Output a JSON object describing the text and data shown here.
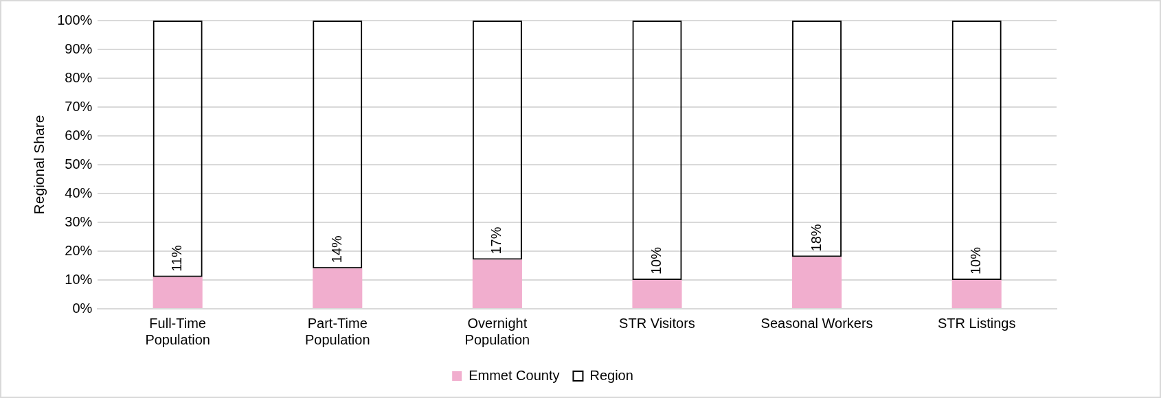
{
  "chart_data": {
    "type": "bar",
    "stacked": true,
    "ylabel": "Regional Share",
    "categories": [
      "Full-Time Population",
      "Part-Time Population",
      "Overnight Population",
      "STR Visitors",
      "Seasonal Workers",
      "STR Listings"
    ],
    "series": [
      {
        "name": "Emmet County",
        "color": "#f1aece",
        "values": [
          11,
          14,
          17,
          10,
          18,
          10
        ],
        "value_labels": [
          "11%",
          "14%",
          "17%",
          "10%",
          "18%",
          "10%"
        ]
      },
      {
        "name": "Region",
        "color": "#000000",
        "values": [
          89,
          86,
          83,
          90,
          82,
          90
        ]
      }
    ],
    "ylim": [
      0,
      100
    ],
    "yticks": [
      {
        "value": 0,
        "label": "0%"
      },
      {
        "value": 10,
        "label": "10%"
      },
      {
        "value": 20,
        "label": "20%"
      },
      {
        "value": 30,
        "label": "30%"
      },
      {
        "value": 40,
        "label": "40%"
      },
      {
        "value": 50,
        "label": "50%"
      },
      {
        "value": 60,
        "label": "60%"
      },
      {
        "value": 70,
        "label": "70%"
      },
      {
        "value": 80,
        "label": "80%"
      },
      {
        "value": 90,
        "label": "90%"
      },
      {
        "value": 100,
        "label": "100%"
      }
    ],
    "grid": "y",
    "legend": "bottom"
  }
}
